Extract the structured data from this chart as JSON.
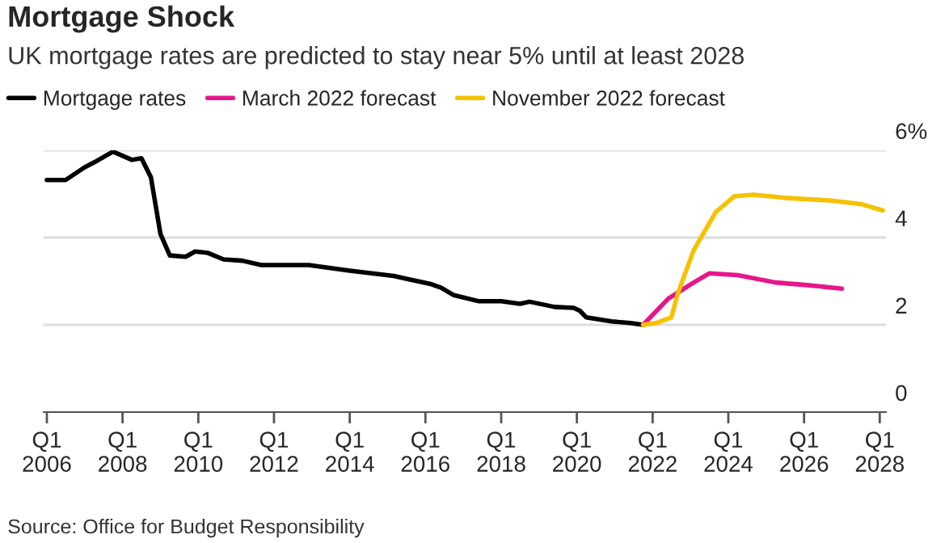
{
  "chart_data": {
    "type": "line",
    "title": "Mortgage Shock",
    "subtitle": "UK mortgage rates are predicted to stay near 5% until at least 2028",
    "annotations": [
      "Source: Office for Budget Responsibility"
    ],
    "series": [
      {
        "name": "Mortgage rates",
        "color": "#000000",
        "x": [
          "2006-01",
          "2006-07",
          "2007-01",
          "2007-05",
          "2007-10",
          "2008-04",
          "2008-07",
          "2008-10",
          "2009-01",
          "2009-04",
          "2009-09",
          "2009-12",
          "2010-04",
          "2010-09",
          "2011-03",
          "2011-09",
          "2012-12",
          "2014-01",
          "2015-03",
          "2016-03",
          "2016-06",
          "2016-10",
          "2017-06",
          "2018-01",
          "2018-07",
          "2018-10",
          "2019-06",
          "2019-12",
          "2020-02",
          "2020-04",
          "2020-12",
          "2021-06",
          "2021-10"
        ],
        "values": [
          5.32,
          5.32,
          5.61,
          5.76,
          5.97,
          5.78,
          5.82,
          5.38,
          4.08,
          3.59,
          3.56,
          3.68,
          3.65,
          3.5,
          3.47,
          3.37,
          3.37,
          3.24,
          3.12,
          2.93,
          2.85,
          2.68,
          2.54,
          2.54,
          2.48,
          2.53,
          2.41,
          2.39,
          2.32,
          2.17,
          2.08,
          2.04,
          2.0
        ]
      },
      {
        "name": "March 2022 forecast",
        "color": "#e6168c",
        "x": [
          "2021-10",
          "2022-06",
          "2023-02",
          "2023-07",
          "2024-04",
          "2025-04",
          "2026-02",
          "2027-01"
        ],
        "values": [
          2.0,
          2.6,
          2.97,
          3.18,
          3.14,
          2.97,
          2.91,
          2.83
        ]
      },
      {
        "name": "November 2022 forecast",
        "color": "#f5c200",
        "x": [
          "2021-10",
          "2022-02",
          "2022-07",
          "2022-09",
          "2023-02",
          "2023-09",
          "2024-03",
          "2024-09",
          "2025-07",
          "2026-09",
          "2027-07",
          "2028-02"
        ],
        "values": [
          2.0,
          2.04,
          2.17,
          2.72,
          3.71,
          4.58,
          4.95,
          4.98,
          4.91,
          4.85,
          4.77,
          4.62
        ]
      }
    ],
    "xlim": [
      "2005-12",
      "2028-03"
    ],
    "xticks": [
      {
        "value": "2006-01",
        "label": "Q1\n2006"
      },
      {
        "value": "2008-01",
        "label": "Q1\n2008"
      },
      {
        "value": "2010-01",
        "label": "Q1\n2010"
      },
      {
        "value": "2012-01",
        "label": "Q1\n2012"
      },
      {
        "value": "2014-01",
        "label": "Q1\n2014"
      },
      {
        "value": "2016-01",
        "label": "Q1\n2016"
      },
      {
        "value": "2018-01",
        "label": "Q1\n2018"
      },
      {
        "value": "2020-01",
        "label": "Q1\n2020"
      },
      {
        "value": "2022-01",
        "label": "Q1\n2022"
      },
      {
        "value": "2024-01",
        "label": "Q1\n2024"
      },
      {
        "value": "2026-01",
        "label": "Q1\n2026"
      },
      {
        "value": "2028-01",
        "label": "Q1\n2028"
      }
    ],
    "ylim": [
      0,
      6
    ],
    "yticks": [
      0,
      2,
      4,
      {
        "value": 6,
        "label": "6%"
      }
    ],
    "grid": "y",
    "legend": "top left",
    "line_style": "solid",
    "marker": "none"
  }
}
